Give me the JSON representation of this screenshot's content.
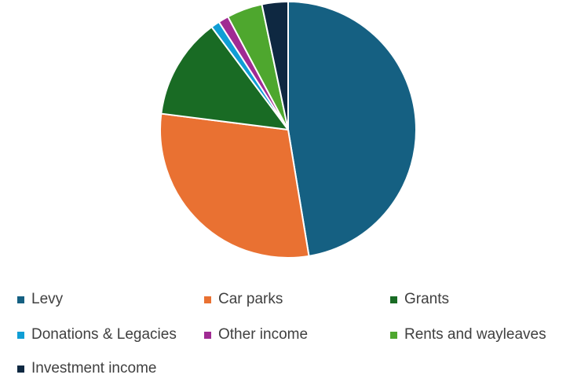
{
  "chart_data": {
    "type": "pie",
    "title": "",
    "slices": [
      {
        "label": "Levy",
        "value": 47.4,
        "color": "#156082"
      },
      {
        "label": "Car parks",
        "value": 29.6,
        "color": "#E97132"
      },
      {
        "label": "Grants",
        "value": 12.8,
        "color": "#196B24"
      },
      {
        "label": "Donations & Legacies",
        "value": 1.1,
        "color": "#0F9ED5"
      },
      {
        "label": "Other income",
        "value": 1.3,
        "color": "#A02B93"
      },
      {
        "label": "Rents and wayleaves",
        "value": 4.5,
        "color": "#4EA72E"
      },
      {
        "label": "Investment income",
        "value": 3.3,
        "color": "#0E2841"
      }
    ],
    "start_angle_deg": 0,
    "direction": "clockwise",
    "legend_position": "bottom"
  }
}
